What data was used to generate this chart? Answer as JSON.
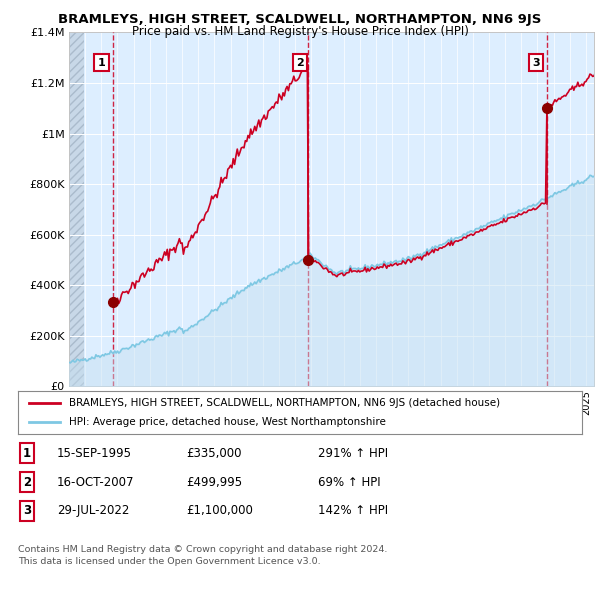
{
  "title": "BRAMLEYS, HIGH STREET, SCALDWELL, NORTHAMPTON, NN6 9JS",
  "subtitle": "Price paid vs. HM Land Registry's House Price Index (HPI)",
  "ylabel_ticks": [
    "£0",
    "£200K",
    "£400K",
    "£600K",
    "£800K",
    "£1M",
    "£1.2M",
    "£1.4M"
  ],
  "ylim": [
    0,
    1400000
  ],
  "ytick_vals": [
    0,
    200000,
    400000,
    600000,
    800000,
    1000000,
    1200000,
    1400000
  ],
  "xlim_start": 1993.0,
  "xlim_end": 2025.5,
  "sale_dates": [
    1995.71,
    2007.79,
    2022.57
  ],
  "sale_prices": [
    335000,
    499995,
    1100000
  ],
  "sale_labels": [
    "1",
    "2",
    "3"
  ],
  "hpi_color": "#7ec8e3",
  "sale_color": "#cc0022",
  "hpi_fill_color": "#c5dff0",
  "legend_sale_label": "BRAMLEYS, HIGH STREET, SCALDWELL, NORTHAMPTON, NN6 9JS (detached house)",
  "legend_hpi_label": "HPI: Average price, detached house, West Northamptonshire",
  "table_rows": [
    {
      "num": "1",
      "date": "15-SEP-1995",
      "price": "£335,000",
      "hpi": "291% ↑ HPI"
    },
    {
      "num": "2",
      "date": "16-OCT-2007",
      "price": "£499,995",
      "hpi": "69% ↑ HPI"
    },
    {
      "num": "3",
      "date": "29-JUL-2022",
      "price": "£1,100,000",
      "hpi": "142% ↑ HPI"
    }
  ],
  "footnote1": "Contains HM Land Registry data © Crown copyright and database right 2024.",
  "footnote2": "This data is licensed under the Open Government Licence v3.0.",
  "bg_color": "#ffffff",
  "plot_bg_color": "#ddeeff",
  "grid_color": "#ffffff"
}
